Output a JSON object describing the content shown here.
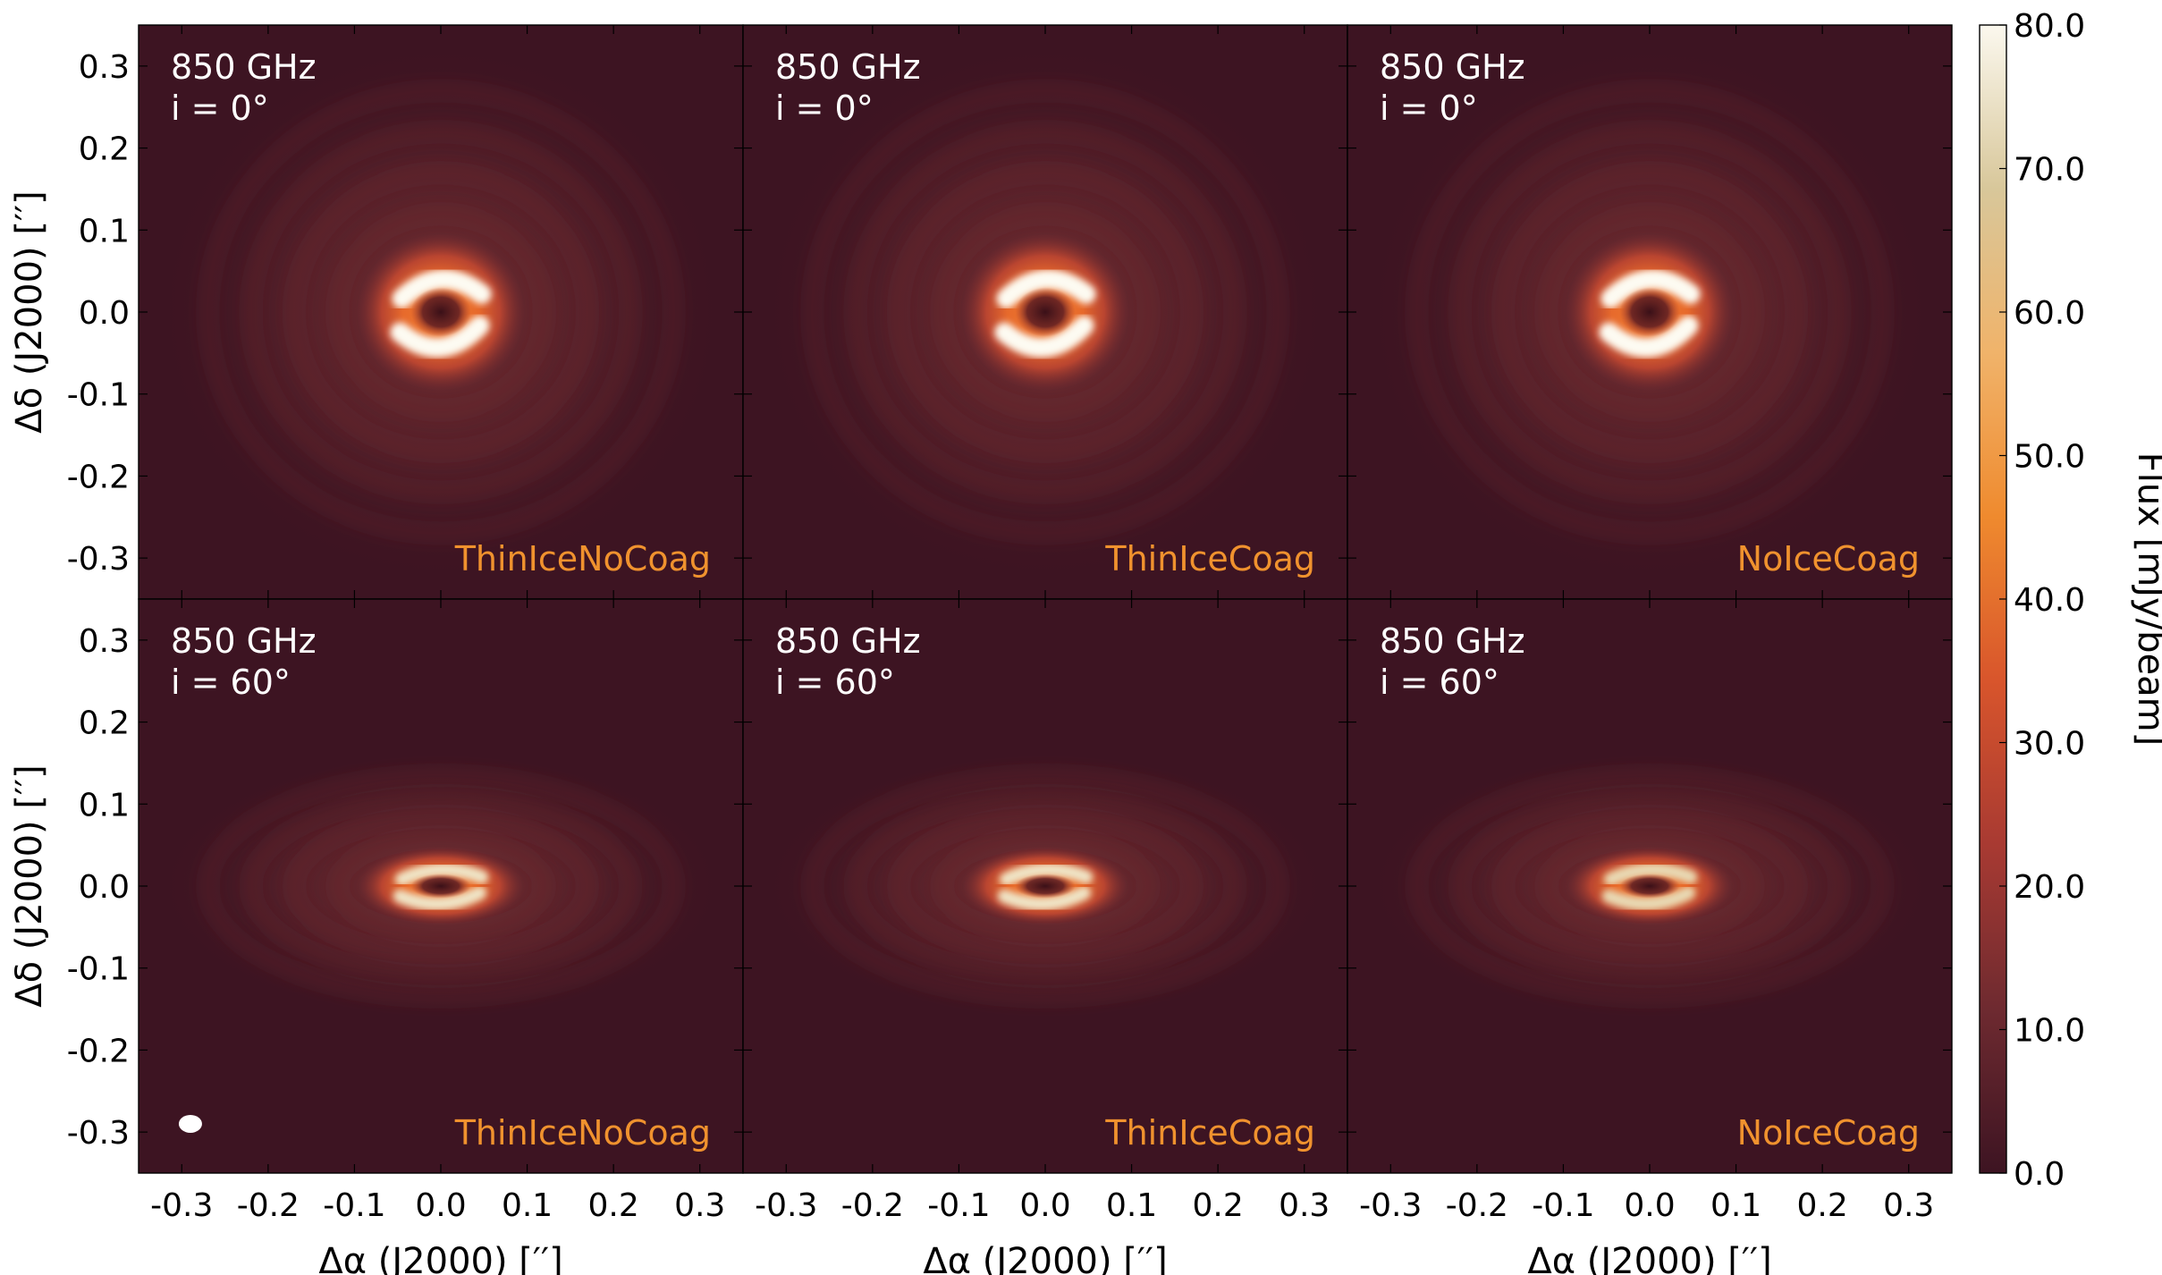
{
  "figure": {
    "colorbar": {
      "label": "Flux [mJy/beam]",
      "min": 0.0,
      "max": 80.0,
      "ticks": [
        "0.0",
        "10.0",
        "20.0",
        "30.0",
        "40.0",
        "50.0",
        "60.0",
        "70.0",
        "80.0"
      ],
      "colormap": [
        "#3d1422",
        "#6e2a30",
        "#a83a32",
        "#d8552c",
        "#ef8a2e",
        "#f0b36a",
        "#d8c79a",
        "#fbf8ee"
      ]
    },
    "x_ticks": [
      "-0.3",
      "-0.2",
      "-0.1",
      "0.0",
      "0.1",
      "0.2",
      "0.3"
    ],
    "y_ticks": [
      "0.3",
      "0.2",
      "0.1",
      "0.0",
      "-0.1",
      "-0.2",
      "-0.3"
    ],
    "xlabel": "Δα (J2000) [′′]",
    "ylabel": "Δδ (J2000) [′′]",
    "model_label_color": "#f0922e",
    "beam_marker": "white-ellipse"
  },
  "chart_data": {
    "type": "heatmap",
    "xlim": [
      -0.35,
      0.35
    ],
    "ylim": [
      -0.35,
      0.35
    ],
    "xlabel": "Δα (J2000) [′′]",
    "ylabel": "Δδ (J2000) [′′]",
    "colorbar_label": "Flux [mJy/beam]",
    "vmin": 0.0,
    "vmax": 80.0,
    "panels": [
      {
        "frequency": "850 GHz",
        "inclination": "i = 0°",
        "model": "ThinIceNoCoag",
        "peak": 80,
        "inner_ring": 0.05,
        "outer_ring": 0.085
      },
      {
        "frequency": "850 GHz",
        "inclination": "i = 0°",
        "model": "ThinIceCoag",
        "peak": 78,
        "inner_ring": 0.05,
        "outer_ring": 0.085
      },
      {
        "frequency": "850 GHz",
        "inclination": "i = 0°",
        "model": "NoIceCoag",
        "peak": 76,
        "inner_ring": 0.05,
        "outer_ring": 0.085
      },
      {
        "frequency": "850 GHz",
        "inclination": "i = 60°",
        "model": "ThinIceNoCoag",
        "peak": 62,
        "inner_ring": 0.05,
        "outer_ring": 0.085
      },
      {
        "frequency": "850 GHz",
        "inclination": "i = 60°",
        "model": "ThinIceCoag",
        "peak": 60,
        "inner_ring": 0.05,
        "outer_ring": 0.085
      },
      {
        "frequency": "850 GHz",
        "inclination": "i = 60°",
        "model": "NoIceCoag",
        "peak": 58,
        "inner_ring": 0.05,
        "outer_ring": 0.085
      }
    ],
    "beam": {
      "x": -0.29,
      "y": -0.29
    }
  }
}
